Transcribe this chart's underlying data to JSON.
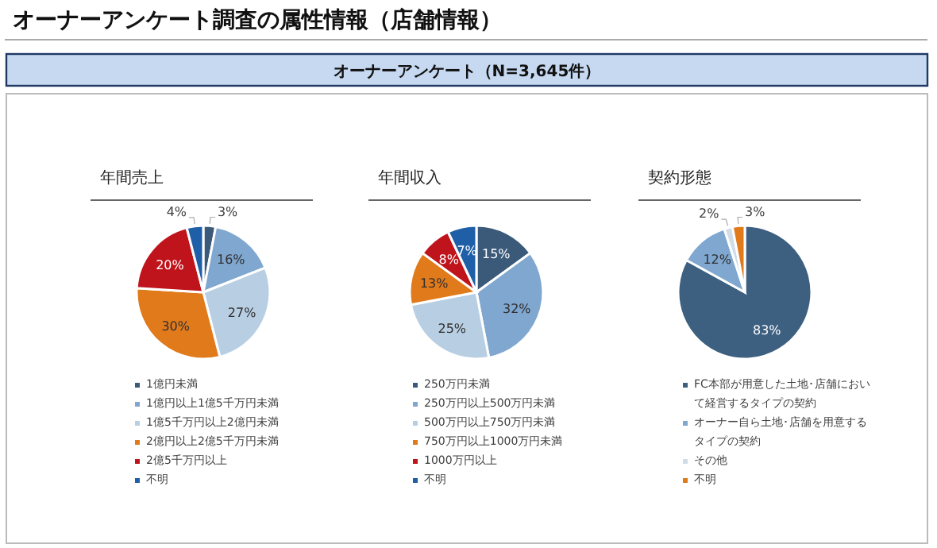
{
  "chart_data": [
    {
      "type": "pie",
      "title": "年間売上",
      "annotations": [
        "オーナーアンケート調査の属性情報（店舗情報）",
        "オーナーアンケート（N=3,645件）"
      ],
      "legend": "bottom",
      "categories": [
        "1億円未満",
        "1億円以上1億5千万円未満",
        "1億5千万円以上2億円未満",
        "2億円以上2億5千万円未満",
        "2億5千万円以上",
        "不明"
      ],
      "values": [
        3,
        16,
        27,
        30,
        20,
        4
      ],
      "value_labels": [
        "3%",
        "16%",
        "27%",
        "30%",
        "20%",
        "4%"
      ],
      "colors": [
        "#3b5a7a",
        "#7fa7cf",
        "#b8cfe3",
        "#e07a1b",
        "#c0141c",
        "#1f5fa8"
      ]
    },
    {
      "type": "pie",
      "title": "年間収入",
      "legend": "bottom",
      "categories": [
        "250万円未満",
        "250万円以上500万円未満",
        "500万円以上750万円未満",
        "750万円以上1000万円未満",
        "1000万円以上",
        "不明"
      ],
      "values": [
        15,
        32,
        25,
        13,
        8,
        7
      ],
      "value_labels": [
        "15%",
        "32%",
        "25%",
        "13%",
        "8%",
        "7%"
      ],
      "colors": [
        "#3b5a7a",
        "#7fa7cf",
        "#b8cfe3",
        "#e07a1b",
        "#c0141c",
        "#1f5fa8"
      ]
    },
    {
      "type": "pie",
      "title": "契約形態",
      "legend": "bottom",
      "categories": [
        "FC本部が用意した土地･店舗において経営するタイプの契約",
        "オーナー自ら土地･店舗を用意するタイプの契約",
        "その他",
        "不明"
      ],
      "values": [
        83,
        12,
        2,
        3
      ],
      "value_labels": [
        "83%",
        "12%",
        "2%",
        "3%"
      ],
      "colors": [
        "#3d5f80",
        "#7fa7cf",
        "#d0dde9",
        "#e07a1b"
      ]
    }
  ]
}
